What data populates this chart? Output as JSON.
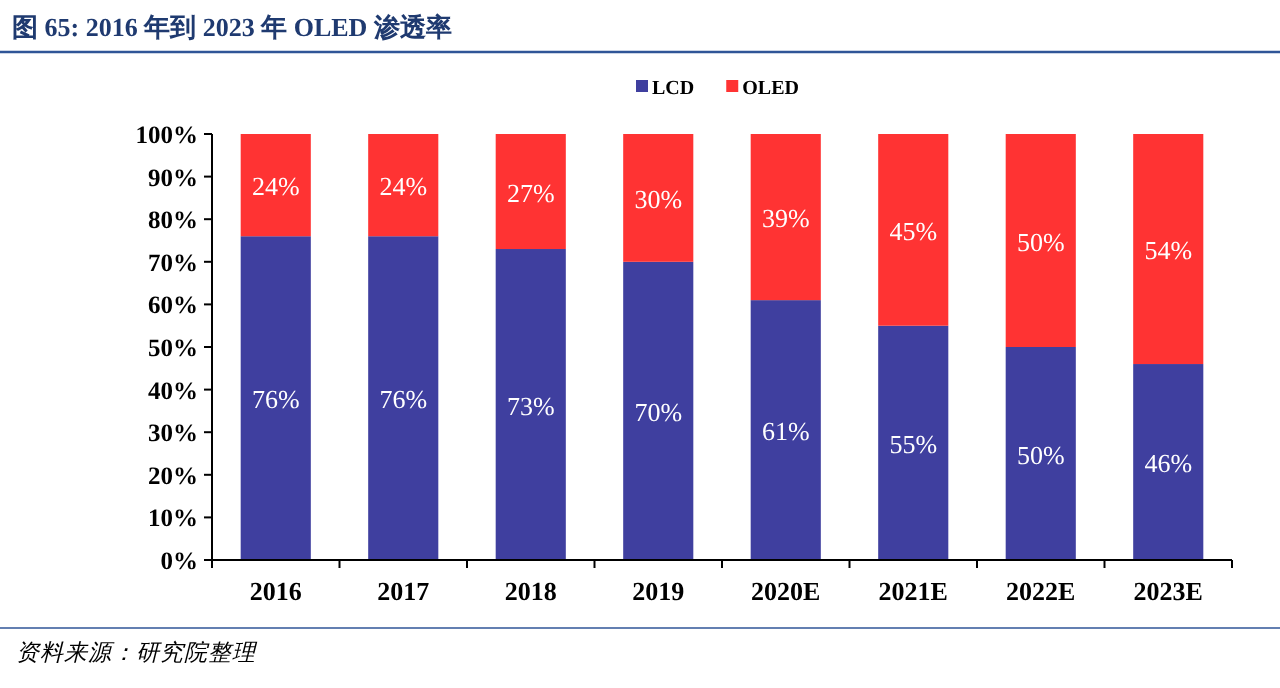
{
  "chart_data": {
    "type": "bar",
    "title": "图 65:  2016 年到 2023 年 OLED 渗透率",
    "stacked": true,
    "legend": "top",
    "categories": [
      "2016",
      "2017",
      "2018",
      "2019",
      "2020E",
      "2021E",
      "2022E",
      "2023E"
    ],
    "series": [
      {
        "name": "LCD",
        "color": "#3f3f9f",
        "values": [
          76,
          76,
          73,
          70,
          61,
          55,
          50,
          46
        ],
        "value_labels": [
          "76%",
          "76%",
          "73%",
          "70%",
          "61%",
          "55%",
          "50%",
          "46%"
        ]
      },
      {
        "name": "OLED",
        "color": "#ff3333",
        "values": [
          24,
          24,
          27,
          30,
          39,
          45,
          50,
          54
        ],
        "value_labels": [
          "24%",
          "24%",
          "27%",
          "30%",
          "39%",
          "45%",
          "50%",
          "54%"
        ]
      }
    ],
    "ylim": [
      0,
      100
    ],
    "yticks": [
      {
        "value": 0,
        "label": "0%"
      },
      {
        "value": 10,
        "label": "10%"
      },
      {
        "value": 20,
        "label": "20%"
      },
      {
        "value": 30,
        "label": "30%"
      },
      {
        "value": 40,
        "label": "40%"
      },
      {
        "value": 50,
        "label": "50%"
      },
      {
        "value": 60,
        "label": "60%"
      },
      {
        "value": 70,
        "label": "70%"
      },
      {
        "value": 80,
        "label": "80%"
      },
      {
        "value": 90,
        "label": "90%"
      },
      {
        "value": 100,
        "label": "100%"
      }
    ],
    "annotations": [
      "资料来源：研究院整理"
    ]
  }
}
